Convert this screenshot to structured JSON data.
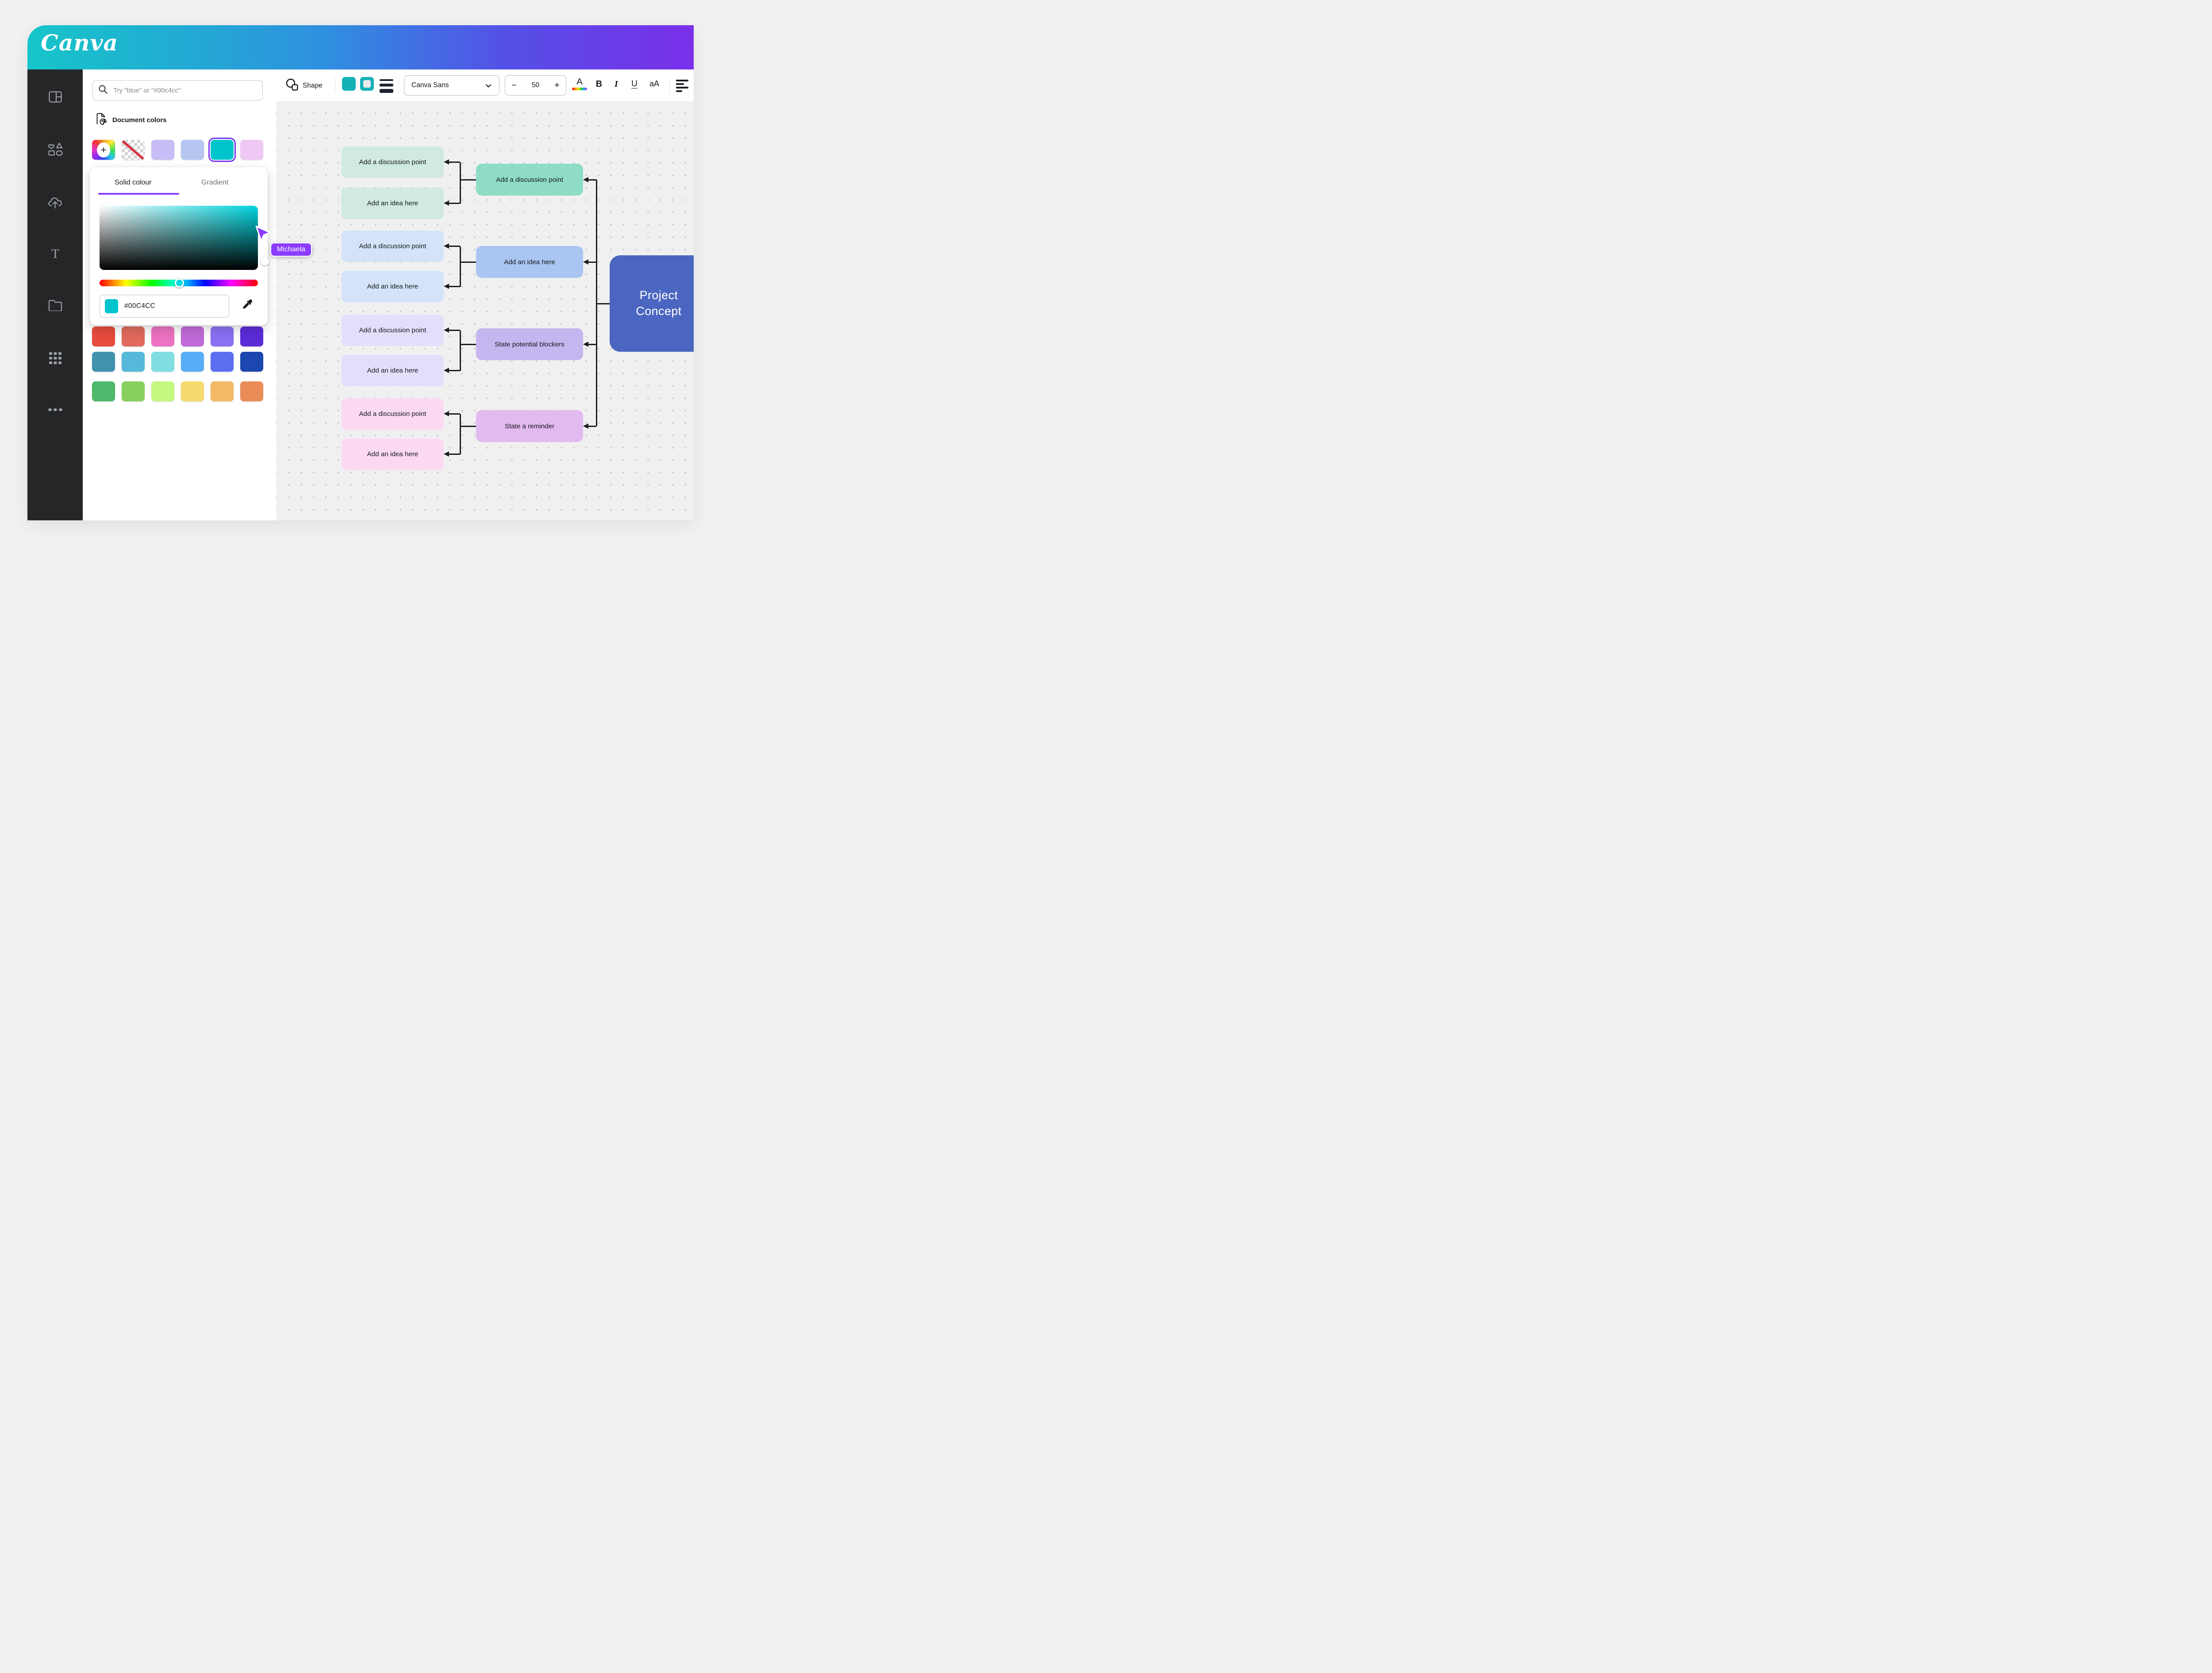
{
  "header": {
    "logo_text": "Canva"
  },
  "sidebar": {
    "items": [
      {
        "icon": "design-icon"
      },
      {
        "icon": "elements-icon"
      },
      {
        "icon": "uploads-icon"
      },
      {
        "icon": "text-icon"
      },
      {
        "icon": "projects-icon"
      },
      {
        "icon": "apps-icon"
      },
      {
        "icon": "more-icon"
      }
    ]
  },
  "panel": {
    "search": {
      "placeholder": "Try \"blue\" or \"#00c4cc\"",
      "icon": "search-icon"
    },
    "document_colors": {
      "label": "Document colors",
      "swatches": [
        {
          "type": "add-color"
        },
        {
          "type": "transparent"
        },
        {
          "type": "color",
          "hex": "#c9bdf7"
        },
        {
          "type": "color",
          "hex": "#b5c7f1"
        },
        {
          "type": "color",
          "hex": "#00c4cc",
          "selected": true
        },
        {
          "type": "color",
          "hex": "#efc9f4"
        }
      ]
    },
    "picker": {
      "tabs": [
        {
          "label": "Solid colour",
          "active": true
        },
        {
          "label": "Gradient",
          "active": false
        }
      ],
      "hex_value": "#00C4CC",
      "accent_underline_color": "#8b3dff",
      "field_top_right_color": "#00d4de",
      "hue_knob_color": "#00d9e0",
      "eyedropper_icon": "eyedropper-icon"
    },
    "palette_rows": [
      [
        "#e74c3d",
        "#e16a5e",
        "#ee72c3",
        "#c06ad9",
        "#8b70f3",
        "#5c2cd8"
      ],
      [
        "#4292ad",
        "#56b9d9",
        "#80dde2",
        "#57aef7",
        "#5a6ff0",
        "#1c47b0"
      ],
      [
        "#4db96a",
        "#87d05d",
        "#c5f87e",
        "#f6da6e",
        "#f3b965",
        "#ea8c57"
      ]
    ]
  },
  "toolbar": {
    "shape_label": "Shape",
    "fill_chip_color": "#00c4cc",
    "border_chip_color": "#00c4cc",
    "font_name": "Canva Sans",
    "font_size": "50",
    "decrease_label": "−",
    "increase_label": "+",
    "text_color_letter": "A",
    "bold_label": "B",
    "italic_label": "I",
    "underline_label": "U",
    "case_label": "aA"
  },
  "collaborator": {
    "name": "Michaela",
    "color": "#8b3dff"
  },
  "canvas": {
    "mindmap": {
      "root": {
        "label": "Project\nConcept",
        "color": "#4b66c0",
        "text_color": "#ffffff"
      },
      "groups": [
        {
          "light": "#d0e9e1",
          "mid": "#8fdcc6",
          "parent_label": "Add a discussion point",
          "child_labels": [
            "Add a discussion point",
            "Add an idea here"
          ]
        },
        {
          "light": "#d5e3f9",
          "mid": "#aac5f1",
          "parent_label": "Add an idea here",
          "child_labels": [
            "Add a discussion point",
            "Add an idea here"
          ]
        },
        {
          "light": "#e5defb",
          "mid": "#c6b6f0",
          "parent_label": "State potential blockers",
          "child_labels": [
            "Add a discussion point",
            "Add an idea here"
          ]
        },
        {
          "light": "#fbd9f2",
          "mid": "#e3baf0",
          "parent_label": "State a reminder",
          "child_labels": [
            "Add a discussion point",
            "Add an idea here"
          ]
        }
      ]
    }
  }
}
